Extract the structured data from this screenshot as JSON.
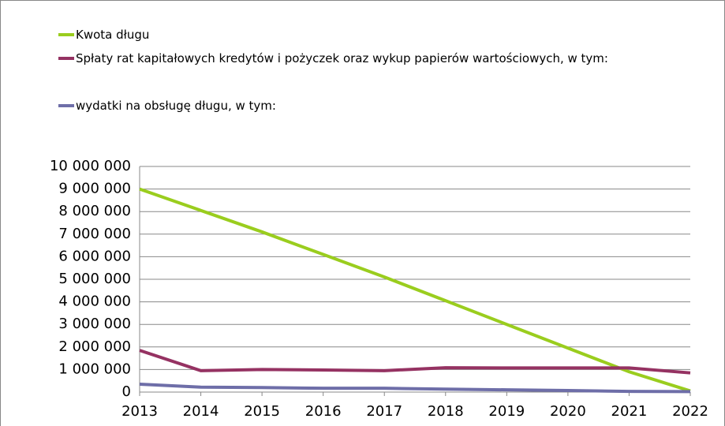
{
  "chart_data": {
    "type": "line",
    "x": [
      2013,
      2014,
      2015,
      2016,
      2017,
      2018,
      2019,
      2020,
      2021,
      2022
    ],
    "series": [
      {
        "name": "Kwota długu",
        "color": "#9acd1e",
        "values": [
          9000000,
          8050000,
          7100000,
          6100000,
          5100000,
          4050000,
          3000000,
          1950000,
          900000,
          50000
        ]
      },
      {
        "name": "Spłaty rat kapitałowych kredytów i pożyczek oraz wykup papierów wartościowych, w tym:",
        "color": "#953262",
        "values": [
          1850000,
          950000,
          1000000,
          980000,
          950000,
          1080000,
          1070000,
          1070000,
          1070000,
          850000
        ]
      },
      {
        "name": "wydatki na obsługę długu, w tym:",
        "color": "#6e6ea8",
        "values": [
          350000,
          220000,
          200000,
          170000,
          170000,
          130000,
          100000,
          70000,
          30000,
          20000
        ]
      }
    ],
    "xlim": [
      2013,
      2022
    ],
    "xticks": [
      2013,
      2014,
      2015,
      2016,
      2017,
      2018,
      2019,
      2020,
      2021,
      2022
    ],
    "ylim": [
      0,
      10000000
    ],
    "yticks": [
      0,
      {
        "value": 1000000,
        "label": "1 000 000"
      },
      {
        "value": 2000000,
        "label": "2 000 000"
      },
      {
        "value": 3000000,
        "label": "3 000 000"
      },
      {
        "value": 4000000,
        "label": "4 000 000"
      },
      {
        "value": 5000000,
        "label": "5 000 000"
      },
      {
        "value": 6000000,
        "label": "6 000 000"
      },
      {
        "value": 7000000,
        "label": "7 000 000"
      },
      {
        "value": 8000000,
        "label": "8 000 000"
      },
      {
        "value": 9000000,
        "label": "9 000 000"
      },
      {
        "value": 10000000,
        "label": "10 000 000"
      }
    ],
    "grid": true,
    "legend": "top"
  }
}
